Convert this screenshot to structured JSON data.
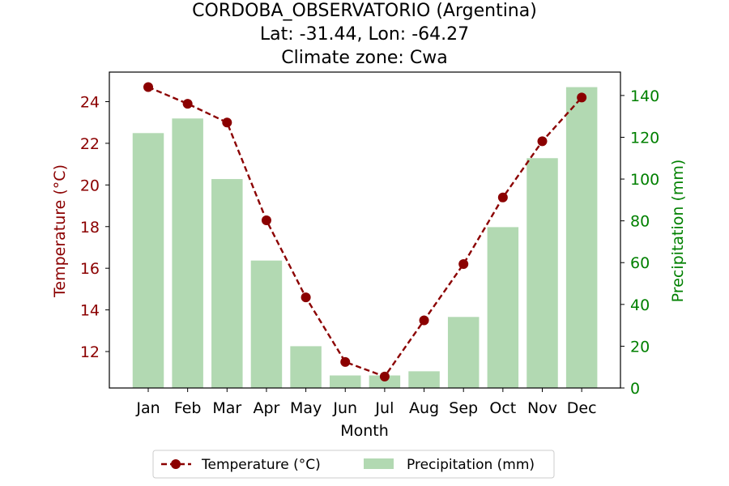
{
  "chart_data": {
    "type": "bar+line",
    "title_lines": [
      "CORDOBA_OBSERVATORIO (Argentina)",
      "Lat: -31.44, Lon: -64.27",
      "Climate zone: Cwa"
    ],
    "categories": [
      "Jan",
      "Feb",
      "Mar",
      "Apr",
      "May",
      "Jun",
      "Jul",
      "Aug",
      "Sep",
      "Oct",
      "Nov",
      "Dec"
    ],
    "xlabel": "Month",
    "series": [
      {
        "name": "Temperature (°C)",
        "kind": "line",
        "axis": "left",
        "color": "#8b0000",
        "style": "dashed",
        "marker": "circle",
        "values": [
          24.7,
          23.9,
          23.0,
          18.3,
          14.6,
          11.5,
          10.8,
          13.5,
          16.2,
          19.4,
          22.1,
          24.2
        ]
      },
      {
        "name": "Precipitation (mm)",
        "kind": "bar",
        "axis": "right",
        "color": "#b2d9b2",
        "values": [
          122,
          129,
          100,
          61,
          20,
          6,
          6,
          8,
          34,
          77,
          110,
          144
        ]
      }
    ],
    "y_left": {
      "label": "Temperature (°C)",
      "color": "#8b0000",
      "ticks": [
        12,
        14,
        16,
        18,
        20,
        22,
        24
      ],
      "range": [
        10.25,
        25.42
      ]
    },
    "y_right": {
      "label": "Precipitation (mm)",
      "color": "#008000",
      "ticks": [
        0,
        20,
        40,
        60,
        80,
        100,
        120,
        140
      ],
      "range": [
        0,
        151.2
      ]
    },
    "legend_position": "bottom-center",
    "grid": false
  }
}
